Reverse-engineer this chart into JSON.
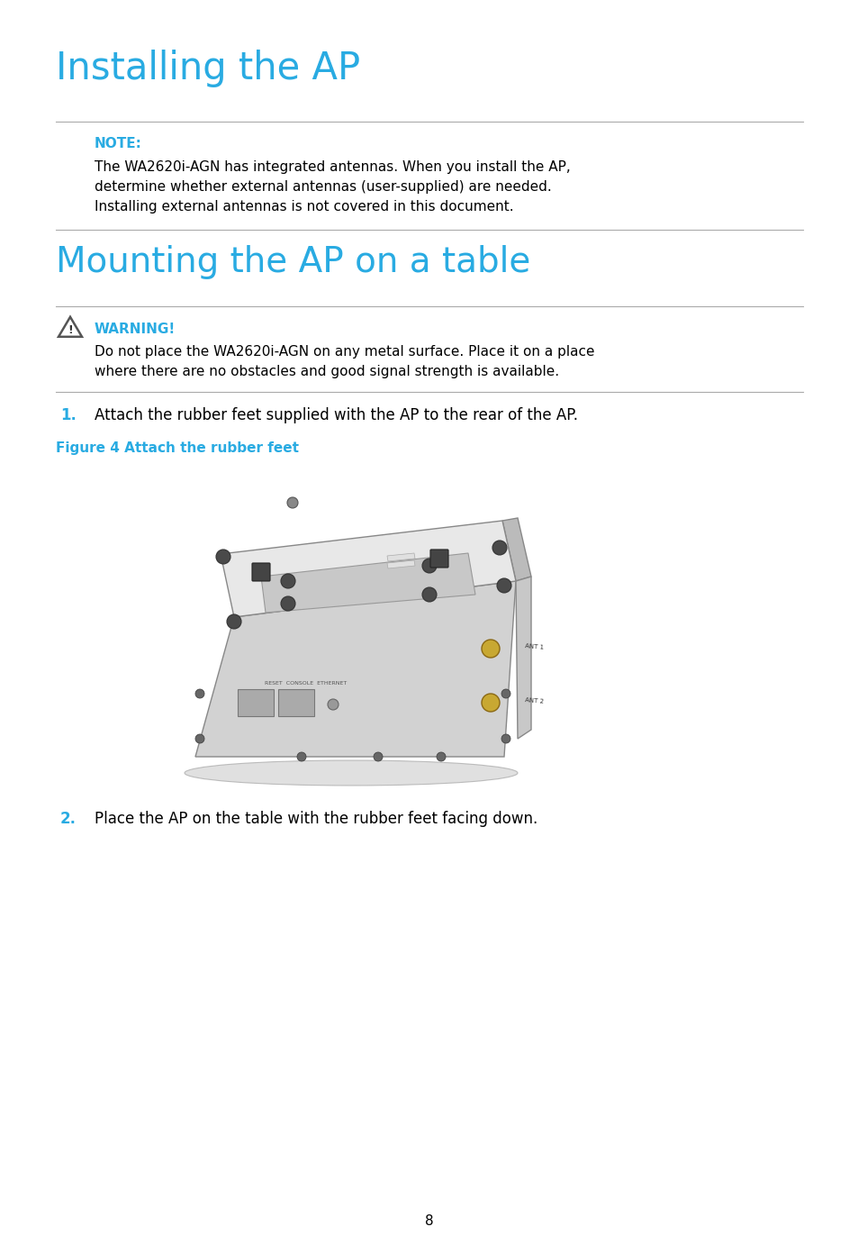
{
  "title": "Installing the AP",
  "subtitle": "Mounting the AP on a table",
  "title_color": "#29ABE2",
  "note_label": "NOTE:",
  "note_color": "#29ABE2",
  "note_text_line1": "The WA2620i-AGN has integrated antennas. When you install the AP,",
  "note_text_line2": "determine whether external antennas (user-supplied) are needed.",
  "note_text_line3": "Installing external antennas is not covered in this document.",
  "warning_label": "WARNING!",
  "warning_color": "#29ABE2",
  "warning_text_line1": "Do not place the WA2620i-AGN on any metal surface. Place it on a place",
  "warning_text_line2": "where there are no obstacles and good signal strength is available.",
  "step1_num": "1.",
  "step1_color": "#29ABE2",
  "step1_text": "Attach the rubber feet supplied with the AP to the rear of the AP.",
  "figure_label": "Figure 4 Attach the rubber feet",
  "figure_label_color": "#29ABE2",
  "step2_num": "2.",
  "step2_color": "#29ABE2",
  "step2_text": "Place the AP on the table with the rubber feet facing down.",
  "page_number": "8",
  "bg_color": "#ffffff",
  "text_color": "#000000",
  "line_color": "#333333"
}
